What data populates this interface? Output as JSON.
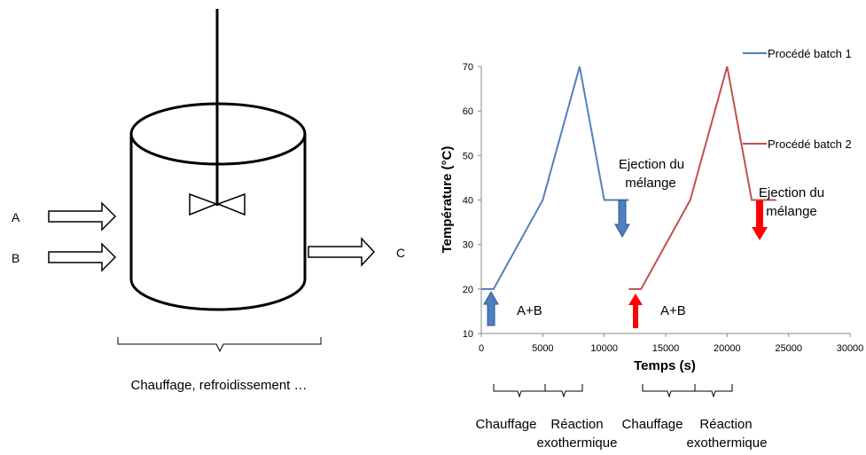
{
  "reactor": {
    "inlet_a": "A",
    "inlet_b": "B",
    "outlet_c": "C",
    "caption": "Chauffage, refroidissement …"
  },
  "chart_data": {
    "type": "line",
    "xlabel": "Temps (s)",
    "ylabel": "Température (°C)",
    "xlim": [
      0,
      30000
    ],
    "ylim": [
      10,
      70
    ],
    "xticks": [
      "0",
      "5000",
      "10000",
      "15000",
      "20000",
      "25000",
      "30000"
    ],
    "yticks": [
      "10",
      "20",
      "30",
      "40",
      "50",
      "60",
      "70"
    ],
    "legend_position": "right",
    "series": [
      {
        "name": "Procédé batch 1",
        "color": "#4f81bd",
        "points": [
          [
            0,
            20
          ],
          [
            1000,
            20
          ],
          [
            5000,
            40
          ],
          [
            8000,
            70
          ],
          [
            10000,
            40
          ],
          [
            12000,
            40
          ]
        ]
      },
      {
        "name": "Procédé batch 2",
        "color": "#c0504d",
        "points": [
          [
            12000,
            20
          ],
          [
            13000,
            20
          ],
          [
            17000,
            40
          ],
          [
            20000,
            70
          ],
          [
            22000,
            40
          ],
          [
            24000,
            40
          ]
        ]
      }
    ],
    "annotations": {
      "ab_1": "A+B",
      "ab_2": "A+B",
      "ejection_1_line1": "Ejection du",
      "ejection_1_line2": "mélange",
      "ejection_2_line1": "Ejection du",
      "ejection_2_line2": "mélange"
    },
    "phases": {
      "heating_1": "Chauffage",
      "reaction_1_line1": "Réaction",
      "reaction_1_line2": "exothermique",
      "heating_2": "Chauffage",
      "reaction_2_line1": "Réaction",
      "reaction_2_line2": "exothermique"
    },
    "arrow_colors": {
      "batch_1": "#4f81bd",
      "batch_2": "#ff0000"
    }
  }
}
